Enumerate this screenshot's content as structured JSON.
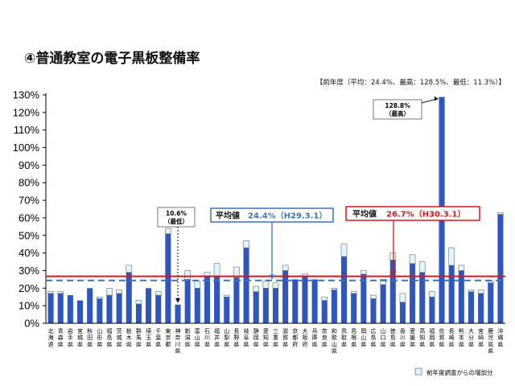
{
  "title": "④普通教室の電子黒板整備率",
  "note": "【前年度（平均：24.4%、最高：128.5%、最低：11.3%）】",
  "legend_label": "前年度調査からの増加分",
  "colors": {
    "base": "#2e56bd",
    "increase": "#dff6ff",
    "increase_stroke": "#6f6f6f",
    "current_avg": "#e0141c",
    "prev_avg": "#3b74b8",
    "axis": "#000000"
  },
  "chart_data": {
    "type": "bar",
    "stacked": true,
    "ylim": [
      0,
      130
    ],
    "ytick_step": 10,
    "ytick_suffix": "%",
    "categories": [
      "北海道",
      "青森県",
      "岩手県",
      "宮城県",
      "秋田県",
      "山形県",
      "福島県",
      "茨城県",
      "栃木県",
      "群馬県",
      "埼玉県",
      "千葉県",
      "東京都",
      "神奈川県",
      "新潟県",
      "富山県",
      "石川県",
      "福井県",
      "山梨県",
      "長野県",
      "岐阜県",
      "静岡県",
      "愛知県",
      "三重県",
      "滋賀県",
      "京都府",
      "大阪府",
      "兵庫県",
      "奈良県",
      "和歌山県",
      "鳥取県",
      "島根県",
      "岡山県",
      "広島県",
      "山口県",
      "徳島県",
      "香川県",
      "愛媛県",
      "高知県",
      "福岡県",
      "佐賀県",
      "長崎県",
      "熊本県",
      "大分県",
      "宮崎県",
      "鹿児島県",
      "沖縄県"
    ],
    "series": [
      {
        "values": [
          17,
          17,
          16,
          13,
          20,
          14,
          16,
          17,
          29,
          11,
          20,
          16,
          51,
          10.6,
          25,
          20,
          27,
          27,
          15,
          26,
          43,
          18,
          20,
          20,
          30,
          25,
          27,
          25,
          13,
          19,
          38,
          17,
          28,
          14,
          22,
          36,
          12,
          34,
          29,
          15,
          128.8,
          33,
          30,
          18,
          17,
          23,
          62
        ]
      },
      {
        "values": [
          1,
          1,
          0,
          0,
          0,
          1,
          4,
          2,
          4,
          2,
          0,
          2,
          3,
          0,
          5,
          4,
          2,
          7,
          1,
          6,
          4,
          3,
          4,
          3,
          3,
          0,
          1,
          0,
          2,
          1,
          7,
          1,
          2,
          2,
          3,
          4,
          5,
          5,
          6,
          3,
          0,
          10,
          3,
          1,
          2,
          1,
          1
        ]
      }
    ],
    "average_current": {
      "value": 26.7,
      "label": "平均値",
      "value_label": "26.7%（H30.3.1）"
    },
    "average_previous": {
      "value": 24.4,
      "label": "平均値",
      "value_label": "24.4%（H29.3.1）"
    },
    "annotations": [
      {
        "category": "神奈川県",
        "line1": "10.6%",
        "line2": "（最低）"
      },
      {
        "category": "佐賀県",
        "line1": "128.8%",
        "line2": "（最高）"
      }
    ]
  }
}
